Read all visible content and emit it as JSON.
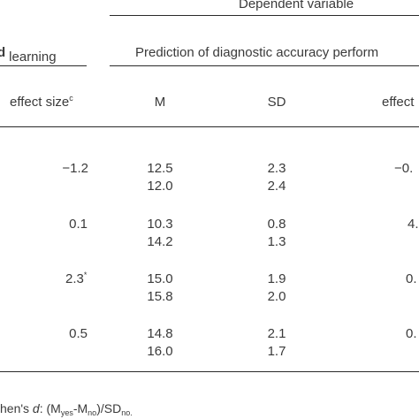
{
  "header": {
    "dependent_variable": "Dependent variable",
    "left_group_prefix": "d",
    "left_group": "learning",
    "right_group": "Prediction of diagnostic accuracy perform"
  },
  "columns": {
    "effect_size_label": "effect size",
    "effect_size_sup": "c",
    "m": "M",
    "sd": "SD",
    "effect_cut": "effect"
  },
  "rows": [
    {
      "effect": "−1.2",
      "effect_mark": "",
      "m": [
        "12.5",
        "12.0"
      ],
      "sd": [
        "2.3",
        "2.4"
      ],
      "effect2": "−0."
    },
    {
      "effect": "0.1",
      "effect_mark": "",
      "m": [
        "10.3",
        "14.2"
      ],
      "sd": [
        "0.8",
        "1.3"
      ],
      "effect2": "4."
    },
    {
      "effect": "2.3",
      "effect_mark": "*",
      "m": [
        "15.0",
        "15.8"
      ],
      "sd": [
        "1.9",
        "2.0"
      ],
      "effect2": "0."
    },
    {
      "effect": "0.5",
      "effect_mark": "",
      "m": [
        "14.8",
        "16.0"
      ],
      "sd": [
        "2.1",
        "1.7"
      ],
      "effect2": "0."
    }
  ],
  "footnote": {
    "prefix": "hen's ",
    "d": "d",
    "colon": ": (M",
    "sub1": "yes",
    "mid": "-M",
    "sub2": "no",
    "end": ")/SD",
    "sub3": "no."
  }
}
